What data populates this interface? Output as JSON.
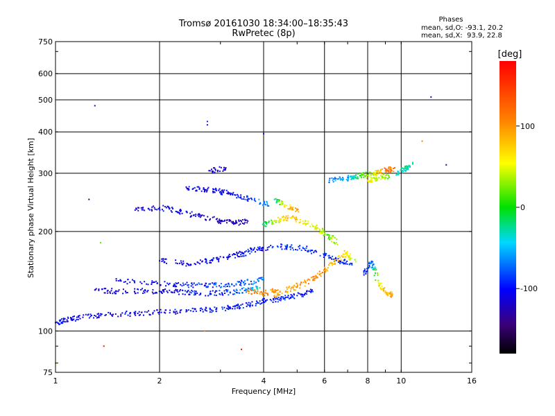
{
  "chart_data": {
    "type": "scatter",
    "title": "Tromsø 20161030 18:34:00–18:35:43",
    "subtitle": "RwPretec (8p)",
    "xlabel": "Frequency [MHz]",
    "ylabel": "Stationary phase Virtual Height [km]",
    "xscale": "log",
    "yscale": "log",
    "xlim": [
      1,
      16
    ],
    "ylim": [
      75,
      750
    ],
    "x_ticks": [
      1,
      2,
      4,
      6,
      8,
      10,
      16
    ],
    "y_ticks": [
      75,
      100,
      200,
      300,
      400,
      500,
      600,
      750
    ],
    "grid": true,
    "colorbar": {
      "label": "[deg]",
      "range": [
        -180,
        180
      ],
      "ticks": [
        100,
        0,
        -100
      ]
    },
    "stats": {
      "heading": "Phases",
      "line_o": "mean, sd,O: -93.1, 20.2",
      "line_x": "mean, sd,X:  93.9, 22.8"
    },
    "series": [
      {
        "points": [
          [
            1.0,
            106,
            -95
          ],
          [
            1.08,
            108,
            -105
          ],
          [
            1.2,
            110,
            -110
          ],
          [
            1.4,
            112,
            -110
          ],
          [
            1.7,
            113,
            -105
          ],
          [
            2.0,
            114,
            -110
          ],
          [
            2.4,
            115,
            -100
          ],
          [
            2.8,
            116,
            -95
          ],
          [
            3.2,
            118,
            -100
          ],
          [
            3.6,
            120,
            -95
          ],
          [
            4.0,
            123,
            -100
          ],
          [
            4.5,
            125,
            -90
          ],
          [
            5.0,
            128,
            -95
          ],
          [
            5.5,
            132,
            -100
          ]
        ]
      },
      {
        "points": [
          [
            1.3,
            133,
            -120
          ],
          [
            1.5,
            132,
            -115
          ],
          [
            1.8,
            132,
            -110
          ],
          [
            2.1,
            132,
            -110
          ],
          [
            2.4,
            131,
            -100
          ],
          [
            2.8,
            130,
            -95
          ],
          [
            3.2,
            131,
            -90
          ],
          [
            3.6,
            133,
            -60
          ],
          [
            3.9,
            135,
            -40
          ]
        ]
      },
      {
        "points": [
          [
            1.5,
            142,
            -110
          ],
          [
            1.9,
            140,
            -105
          ],
          [
            2.3,
            138,
            -100
          ],
          [
            2.7,
            137,
            -90
          ],
          [
            3.1,
            138,
            -85
          ],
          [
            3.5,
            140,
            -80
          ],
          [
            4.0,
            143,
            -70
          ]
        ]
      },
      {
        "points": [
          [
            2.0,
            163,
            -115
          ],
          [
            2.4,
            160,
            -110
          ],
          [
            2.8,
            163,
            -105
          ],
          [
            3.2,
            168,
            -110
          ],
          [
            3.5,
            172,
            -100
          ],
          [
            3.9,
            178,
            -100
          ],
          [
            4.5,
            180,
            -95
          ],
          [
            5.2,
            178,
            -90
          ],
          [
            6.0,
            170,
            -90
          ],
          [
            6.6,
            163,
            -100
          ],
          [
            7.2,
            160,
            -95
          ]
        ]
      },
      {
        "points": [
          [
            1.7,
            232,
            -115
          ],
          [
            2.0,
            236,
            -110
          ],
          [
            2.3,
            230,
            -105
          ],
          [
            2.6,
            222,
            -115
          ],
          [
            3.0,
            215,
            -120
          ],
          [
            3.3,
            212,
            -125
          ],
          [
            3.6,
            215,
            -115
          ]
        ]
      },
      {
        "points": [
          [
            2.4,
            270,
            -100
          ],
          [
            2.7,
            268,
            -105
          ],
          [
            3.0,
            264,
            -110
          ],
          [
            3.3,
            258,
            -100
          ],
          [
            3.7,
            250,
            -90
          ],
          [
            4.1,
            242,
            -60
          ]
        ]
      },
      {
        "points": [
          [
            2.8,
            305,
            -110
          ],
          [
            3.1,
            310,
            -115
          ]
        ]
      },
      {
        "points": [
          [
            4.0,
            210,
            -30
          ],
          [
            4.3,
            215,
            40
          ],
          [
            4.7,
            220,
            80
          ],
          [
            5.2,
            215,
            60
          ],
          [
            5.7,
            205,
            50
          ],
          [
            6.1,
            195,
            20
          ],
          [
            6.5,
            185,
            40
          ]
        ]
      },
      {
        "points": [
          [
            4.3,
            250,
            -40
          ],
          [
            4.6,
            240,
            60
          ],
          [
            5.0,
            232,
            100
          ]
        ]
      },
      {
        "points": [
          [
            4.3,
            128,
            90
          ],
          [
            4.8,
            134,
            95
          ],
          [
            5.3,
            140,
            100
          ],
          [
            5.8,
            148,
            105
          ],
          [
            6.3,
            160,
            85
          ],
          [
            6.9,
            172,
            70
          ],
          [
            7.4,
            162,
            40
          ]
        ]
      },
      {
        "points": [
          [
            3.6,
            132,
            110
          ],
          [
            4.0,
            130,
            105
          ],
          [
            4.4,
            133,
            100
          ]
        ]
      },
      {
        "points": [
          [
            6.2,
            285,
            -70
          ],
          [
            6.8,
            288,
            -60
          ],
          [
            7.3,
            292,
            -40
          ],
          [
            7.8,
            297,
            20
          ],
          [
            8.4,
            300,
            50
          ],
          [
            9.0,
            305,
            110
          ],
          [
            9.5,
            310,
            120
          ]
        ]
      },
      {
        "points": [
          [
            8.0,
            285,
            70
          ],
          [
            8.5,
            290,
            40
          ],
          [
            9.2,
            295,
            20
          ]
        ]
      },
      {
        "points": [
          [
            9.8,
            300,
            -40
          ],
          [
            10.3,
            310,
            -30
          ],
          [
            10.8,
            320,
            -20
          ]
        ]
      },
      {
        "points": [
          [
            7.8,
            150,
            -90
          ],
          [
            8.2,
            162,
            -80
          ],
          [
            8.6,
            140,
            60
          ],
          [
            9.0,
            132,
            80
          ],
          [
            9.4,
            128,
            100
          ]
        ]
      },
      {
        "points": [
          [
            1.3,
            480,
            -120
          ],
          [
            2.75,
            430,
            -90
          ],
          [
            4.0,
            395,
            -110
          ],
          [
            12.2,
            510,
            -110
          ],
          [
            1.25,
            250,
            -150
          ],
          [
            1.0,
            80,
            40
          ],
          [
            1.38,
            90,
            170
          ],
          [
            3.45,
            88,
            170
          ],
          [
            2.7,
            100,
            120
          ],
          [
            1.35,
            185,
            20
          ],
          [
            13.5,
            318,
            -130
          ],
          [
            11.5,
            375,
            110
          ],
          [
            2.75,
            420,
            -95
          ]
        ]
      }
    ]
  }
}
